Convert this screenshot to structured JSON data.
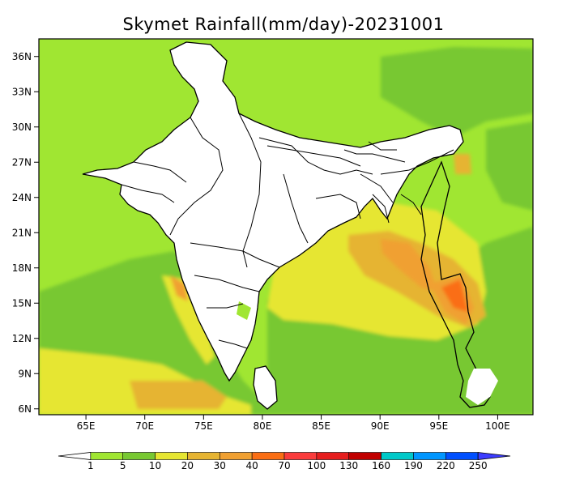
{
  "title": "Skymet Rainfall(mm/day)-20231001",
  "map": {
    "lon_range": [
      61,
      103
    ],
    "lat_range": [
      5.5,
      37.5
    ],
    "lat_ticks": [
      "6N",
      "9N",
      "12N",
      "15N",
      "18N",
      "21N",
      "24N",
      "27N",
      "30N",
      "33N",
      "36N"
    ],
    "lon_ticks": [
      "65E",
      "70E",
      "75E",
      "80E",
      "85E",
      "90E",
      "95E",
      "100E"
    ],
    "land_color": "#ffffff",
    "boundary_color": "#000000"
  },
  "legend": {
    "labels": [
      "1",
      "5",
      "10",
      "20",
      "30",
      "40",
      "70",
      "100",
      "130",
      "160",
      "190",
      "220",
      "250"
    ],
    "colors": [
      "#ffffff",
      "#a0e632",
      "#78c832",
      "#e6e632",
      "#e6b432",
      "#f0a032",
      "#fa6e14",
      "#fa3c3c",
      "#e61e1e",
      "#c00000",
      "#00c8c8",
      "#0096ff",
      "#0050ff",
      "#3c3cff"
    ]
  }
}
